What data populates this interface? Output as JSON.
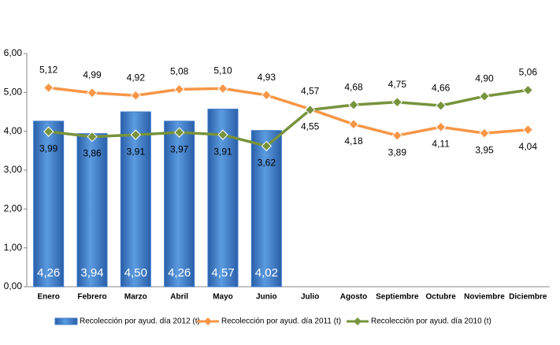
{
  "chart_data": {
    "type": "combo",
    "categories": [
      "Enero",
      "Febrero",
      "Marzo",
      "Abril",
      "Mayo",
      "Junio",
      "Julio",
      "Agosto",
      "Septiembre",
      "Octubre",
      "Noviembre",
      "Diciembre"
    ],
    "ylim": [
      0,
      6
    ],
    "yticks": [
      {
        "value": 0,
        "label": "0,00"
      },
      {
        "value": 1,
        "label": "1,00"
      },
      {
        "value": 2,
        "label": "2,00"
      },
      {
        "value": 3,
        "label": "3,00"
      },
      {
        "value": 4,
        "label": "4,00"
      },
      {
        "value": 5,
        "label": "5,00"
      },
      {
        "value": 6,
        "label": "6,00"
      }
    ],
    "grid": false,
    "legend": "bottom",
    "series": [
      {
        "name": "Recolección por ayud. día 2012 (t)",
        "type": "bar",
        "color": "#3a78c9",
        "values": [
          4.26,
          3.94,
          4.5,
          4.26,
          4.57,
          4.02,
          null,
          null,
          null,
          null,
          null,
          null
        ],
        "value_labels": [
          "4,26",
          "3,94",
          "4,50",
          "4,26",
          "4,57",
          "4,02",
          null,
          null,
          null,
          null,
          null,
          null
        ]
      },
      {
        "name": "Recolección por ayud. día 2011 (t)",
        "type": "line",
        "color": "#f79646",
        "values": [
          5.12,
          4.99,
          4.92,
          5.08,
          5.1,
          4.93,
          4.57,
          4.18,
          3.89,
          4.11,
          3.95,
          4.04
        ],
        "value_labels": [
          "5,12",
          "4,99",
          "4,92",
          "5,08",
          "5,10",
          "4,93",
          "4,57",
          "4,18",
          "3,89",
          "4,11",
          "3,95",
          "4,04"
        ]
      },
      {
        "name": "Recolección por ayud. día 2010 (t)",
        "type": "line",
        "color": "#77933c",
        "values": [
          3.99,
          3.86,
          3.91,
          3.97,
          3.91,
          3.62,
          4.55,
          4.68,
          4.75,
          4.66,
          4.9,
          5.06
        ],
        "value_labels": [
          "3,99",
          "3,86",
          "3,91",
          "3,97",
          "3,91",
          "3,62",
          "4,55",
          "4,68",
          "4,75",
          "4,66",
          "4,90",
          "5,06"
        ]
      }
    ]
  }
}
